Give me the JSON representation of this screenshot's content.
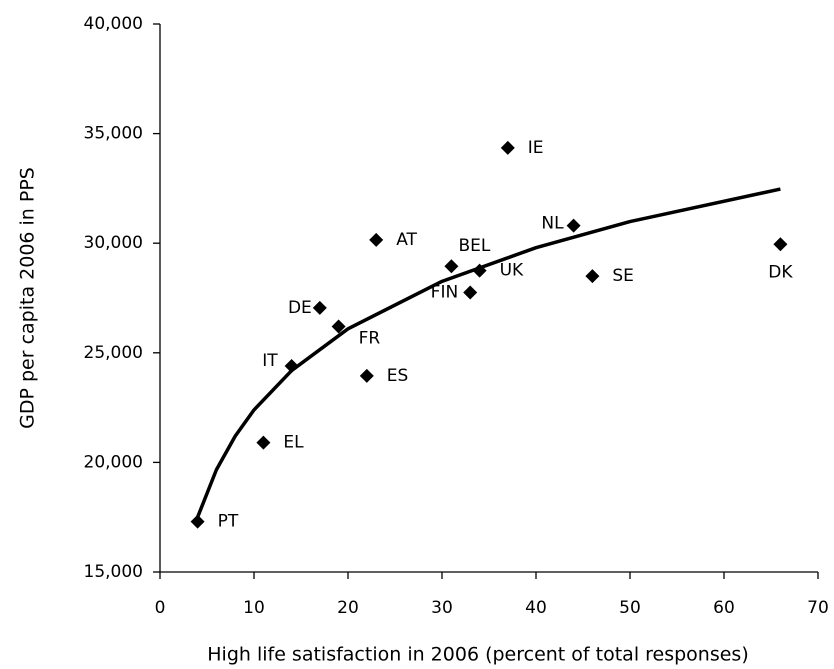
{
  "chart_data": {
    "type": "scatter",
    "x_label": "High life satisfaction in 2006 (percent of total responses)",
    "y_label": "GDP per capita 2006 in PPS",
    "xlim": [
      0,
      70
    ],
    "xticks": [
      0,
      10,
      20,
      30,
      40,
      50,
      60,
      70
    ],
    "ylim": [
      15000,
      40000
    ],
    "yticks": [
      {
        "value": 15000,
        "label": "15,000"
      },
      {
        "value": 20000,
        "label": "20,000"
      },
      {
        "value": 25000,
        "label": "25,000"
      },
      {
        "value": 30000,
        "label": "30,000"
      },
      {
        "value": 35000,
        "label": "35,000"
      },
      {
        "value": 40000,
        "label": "40,000"
      }
    ],
    "grid": false,
    "series": [
      {
        "color": "#000000",
        "labels": [
          "PT",
          "EL",
          "IT",
          "ES",
          "DE",
          "FR",
          "AT",
          "BEL",
          "UK",
          "FIN",
          "IE",
          "NL",
          "SE",
          "DK"
        ],
        "x": [
          4,
          11,
          14,
          22,
          17,
          19,
          23,
          31,
          34,
          33,
          37,
          44,
          46,
          66
        ],
        "values": [
          17300,
          20900,
          24400,
          23950,
          27050,
          26200,
          30150,
          28950,
          28750,
          27750,
          34350,
          30800,
          28500,
          29950
        ]
      }
    ],
    "trendline": {
      "type": "logarithmic",
      "color": "#000000",
      "x": [
        4,
        6,
        8,
        10,
        14,
        20,
        30,
        40,
        50,
        66
      ],
      "values": [
        17500,
        19666,
        21200,
        22395,
        24190,
        26095,
        28259,
        29795,
        30987,
        32470
      ]
    }
  }
}
